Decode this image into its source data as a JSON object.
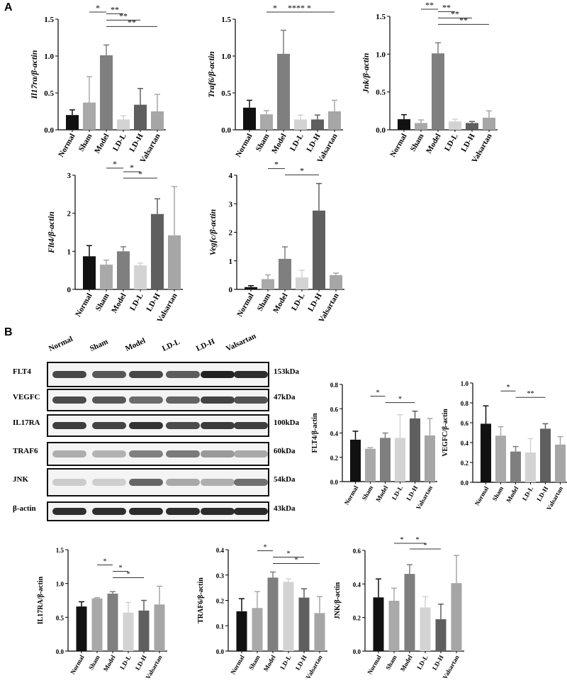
{
  "panels": {
    "a": "A",
    "b": "B"
  },
  "blot": {
    "lanes": [
      "Normal",
      "Sham",
      "Model",
      "LD-L",
      "LD-H",
      "Valsartan"
    ],
    "rows": [
      {
        "protein": "FLT4",
        "size": "153kDa",
        "intensity": [
          0.8,
          0.72,
          0.8,
          0.7,
          0.98,
          0.92
        ]
      },
      {
        "protein": "VEGFC",
        "size": "47kDa",
        "intensity": [
          0.78,
          0.72,
          0.62,
          0.66,
          0.82,
          0.74
        ]
      },
      {
        "protein": "IL17RA",
        "size": "100kDa",
        "intensity": [
          0.85,
          0.82,
          0.9,
          0.78,
          0.86,
          0.84
        ]
      },
      {
        "protein": "TRAF6",
        "size": "60kDa",
        "intensity": [
          0.3,
          0.28,
          0.52,
          0.55,
          0.4,
          0.32
        ]
      },
      {
        "protein": "JNK",
        "size": "54kDa",
        "intensity": [
          0.15,
          0.14,
          0.65,
          0.32,
          0.3,
          0.6
        ]
      },
      {
        "protein": "β-actin",
        "size": "43kDa",
        "intensity": [
          0.92,
          0.92,
          0.93,
          0.92,
          0.93,
          0.94
        ]
      }
    ]
  },
  "chart_data": [
    {
      "type": "bar",
      "ylabel": "Il17ra/β-actin",
      "ylabel_italic": true,
      "categories": [
        "Normal",
        "Sham",
        "Model",
        "LD-L",
        "LD-H",
        "Valsartan"
      ],
      "values": [
        0.2,
        0.37,
        1.01,
        0.14,
        0.34,
        0.25
      ],
      "errors": [
        0.07,
        0.35,
        0.14,
        0.05,
        0.22,
        0.23
      ],
      "ylim": [
        0,
        1.5
      ],
      "yticks": [
        0,
        0.5,
        1.0,
        1.5
      ],
      "tick_labels": [
        "0.0",
        "0.5",
        "1.0",
        "1.5"
      ],
      "sig": [
        {
          "from": 2,
          "to": 3,
          "label": "*"
        },
        {
          "from": 3,
          "to": 4,
          "label": "**"
        },
        {
          "from": 3,
          "to": 5,
          "label": "**"
        },
        {
          "from": 3,
          "to": 6,
          "label": "**"
        }
      ]
    },
    {
      "type": "bar",
      "ylabel": "Traf6/β-actin",
      "ylabel_italic": true,
      "categories": [
        "Normal",
        "Sham",
        "Model",
        "LD-L",
        "LD-H",
        "Valsartan"
      ],
      "values": [
        0.3,
        0.21,
        1.03,
        0.14,
        0.14,
        0.25
      ],
      "errors": [
        0.1,
        0.05,
        0.32,
        0.06,
        0.06,
        0.15
      ],
      "ylim": [
        0,
        1.5
      ],
      "yticks": [
        0,
        0.5,
        1.0,
        1.5
      ],
      "tick_labels": [
        "0.0",
        "0.5",
        "1.0",
        "1.5"
      ],
      "sig": [
        {
          "from": 2,
          "to": 3,
          "label": "*"
        },
        {
          "from": 3,
          "to": 4,
          "label": "**"
        },
        {
          "from": 3,
          "to": 5,
          "label": "**"
        },
        {
          "from": 3,
          "to": 6,
          "label": "*"
        }
      ]
    },
    {
      "type": "bar",
      "ylabel": "Jnk/β-actin",
      "ylabel_italic": true,
      "categories": [
        "Normal",
        "Sham",
        "Model",
        "LD-L",
        "LD-H",
        "Valsartan"
      ],
      "values": [
        0.14,
        0.09,
        1.01,
        0.11,
        0.09,
        0.16
      ],
      "errors": [
        0.06,
        0.04,
        0.14,
        0.03,
        0.02,
        0.09
      ],
      "ylim": [
        0,
        1.5
      ],
      "yticks": [
        0,
        0.5,
        1.0,
        1.5
      ],
      "tick_labels": [
        "0.0",
        "0.5",
        "1.0",
        "1.5"
      ],
      "sig": [
        {
          "from": 2,
          "to": 3,
          "label": "**"
        },
        {
          "from": 3,
          "to": 4,
          "label": "**"
        },
        {
          "from": 3,
          "to": 5,
          "label": "**"
        },
        {
          "from": 3,
          "to": 6,
          "label": "**"
        }
      ]
    },
    {
      "type": "bar",
      "ylabel": "Flt4/β-actin",
      "ylabel_italic": true,
      "categories": [
        "Normal",
        "Sham",
        "Model",
        "LD-L",
        "LD-H",
        "Valsartan"
      ],
      "values": [
        0.87,
        0.65,
        1.0,
        0.63,
        1.98,
        1.42
      ],
      "errors": [
        0.28,
        0.12,
        0.12,
        0.06,
        0.4,
        1.28
      ],
      "ylim": [
        0,
        3
      ],
      "yticks": [
        0,
        1,
        2,
        3
      ],
      "tick_labels": [
        "0",
        "1",
        "2",
        "3"
      ],
      "sig": [
        {
          "from": 2,
          "to": 3,
          "label": "*"
        },
        {
          "from": 3,
          "to": 4,
          "label": "*"
        },
        {
          "from": 3,
          "to": 5,
          "label": "*"
        }
      ]
    },
    {
      "type": "bar",
      "ylabel": "Vegfc/β-actin",
      "ylabel_italic": true,
      "categories": [
        "Normal",
        "Sham",
        "Model",
        "LD-L",
        "LD-H",
        "Valsartan"
      ],
      "values": [
        0.08,
        0.36,
        1.07,
        0.42,
        2.76,
        0.5
      ],
      "errors": [
        0.05,
        0.15,
        0.42,
        0.25,
        0.95,
        0.07
      ],
      "ylim": [
        0,
        4
      ],
      "yticks": [
        0,
        1,
        2,
        3,
        4
      ],
      "tick_labels": [
        "0",
        "1",
        "2",
        "3",
        "4"
      ],
      "sig": [
        {
          "from": 2,
          "to": 3,
          "label": "*"
        },
        {
          "from": 3,
          "to": 5,
          "label": "*"
        }
      ]
    },
    {
      "type": "bar",
      "ylabel": "FLT4/β-actin",
      "ylabel_italic": false,
      "categories": [
        "Normal",
        "Sham",
        "Model",
        "LD-L",
        "LD-H",
        "Valsartan"
      ],
      "values": [
        0.345,
        0.27,
        0.36,
        0.36,
        0.52,
        0.38
      ],
      "errors": [
        0.07,
        0.01,
        0.04,
        0.19,
        0.06,
        0.14
      ],
      "ylim": [
        0,
        0.8
      ],
      "yticks": [
        0,
        0.2,
        0.4,
        0.6,
        0.8
      ],
      "tick_labels": [
        "0.0",
        "0.2",
        "0.4",
        "0.6",
        "0.8"
      ],
      "sig": [
        {
          "from": 2,
          "to": 3,
          "label": "*"
        },
        {
          "from": 3,
          "to": 5,
          "label": "*"
        }
      ]
    },
    {
      "type": "bar",
      "ylabel": "VEGFC/β-actin",
      "ylabel_italic": false,
      "categories": [
        "Normal",
        "Sham",
        "Model",
        "LD-L",
        "LD-H",
        "Valsartan"
      ],
      "values": [
        0.59,
        0.47,
        0.31,
        0.3,
        0.54,
        0.38
      ],
      "errors": [
        0.18,
        0.09,
        0.05,
        0.14,
        0.05,
        0.08
      ],
      "ylim": [
        0,
        1.0
      ],
      "yticks": [
        0,
        0.2,
        0.4,
        0.6,
        0.8,
        1.0
      ],
      "tick_labels": [
        "0.0",
        "0.2",
        "0.4",
        "0.6",
        "0.8",
        "1.0"
      ],
      "sig": [
        {
          "from": 2,
          "to": 3,
          "label": "*"
        },
        {
          "from": 3,
          "to": 5,
          "label": "**"
        }
      ]
    },
    {
      "type": "bar",
      "ylabel": "IL17RA/β-actin",
      "ylabel_italic": false,
      "categories": [
        "Normal",
        "Sham",
        "Model",
        "LD-L",
        "LD-H",
        "Valsartan"
      ],
      "values": [
        0.66,
        0.78,
        0.85,
        0.57,
        0.6,
        0.69
      ],
      "errors": [
        0.07,
        0.01,
        0.03,
        0.15,
        0.15,
        0.27
      ],
      "ylim": [
        0,
        1.5
      ],
      "yticks": [
        0,
        0.5,
        1.0,
        1.5
      ],
      "tick_labels": [
        "0.0",
        "0.5",
        "1.0",
        "1.5"
      ],
      "sig": [
        {
          "from": 2,
          "to": 3,
          "label": "*"
        },
        {
          "from": 3,
          "to": 4,
          "label": "*"
        },
        {
          "from": 3,
          "to": 5,
          "label": "*"
        }
      ]
    },
    {
      "type": "bar",
      "ylabel": "TRAF6/β-actin",
      "ylabel_italic": false,
      "categories": [
        "Normal",
        "Sham",
        "Model",
        "LD-L",
        "LD-H",
        "Valsartan"
      ],
      "values": [
        0.157,
        0.17,
        0.29,
        0.273,
        0.211,
        0.15
      ],
      "errors": [
        0.05,
        0.065,
        0.022,
        0.012,
        0.035,
        0.065
      ],
      "ylim": [
        0,
        0.4
      ],
      "yticks": [
        0,
        0.1,
        0.2,
        0.3,
        0.4
      ],
      "tick_labels": [
        "0.0",
        "0.1",
        "0.2",
        "0.3",
        "0.4"
      ],
      "sig": [
        {
          "from": 2,
          "to": 3,
          "label": "*"
        },
        {
          "from": 3,
          "to": 5,
          "label": "*"
        },
        {
          "from": 3,
          "to": 6,
          "label": "*"
        }
      ]
    },
    {
      "type": "bar",
      "ylabel": "JNK/β-actin",
      "ylabel_italic": false,
      "categories": [
        "Normal",
        "Sham",
        "Model",
        "LD-L",
        "LD-H",
        "Valsartan"
      ],
      "values": [
        0.32,
        0.3,
        0.46,
        0.26,
        0.19,
        0.405
      ],
      "errors": [
        0.11,
        0.075,
        0.055,
        0.065,
        0.09,
        0.165
      ],
      "ylim": [
        0,
        0.6
      ],
      "yticks": [
        0,
        0.2,
        0.4,
        0.6
      ],
      "tick_labels": [
        "0.0",
        "0.2",
        "0.4",
        "0.6"
      ],
      "sig": [
        {
          "from": 2,
          "to": 3,
          "label": "*"
        },
        {
          "from": 3,
          "to": 4,
          "label": "*"
        },
        {
          "from": 3,
          "to": 5,
          "label": "*"
        }
      ]
    }
  ],
  "bar_colors": [
    "#111111",
    "#a9a9a9",
    "#7f7f7f",
    "#d3d3d3",
    "#5f5f5f",
    "#a6a6a6"
  ]
}
